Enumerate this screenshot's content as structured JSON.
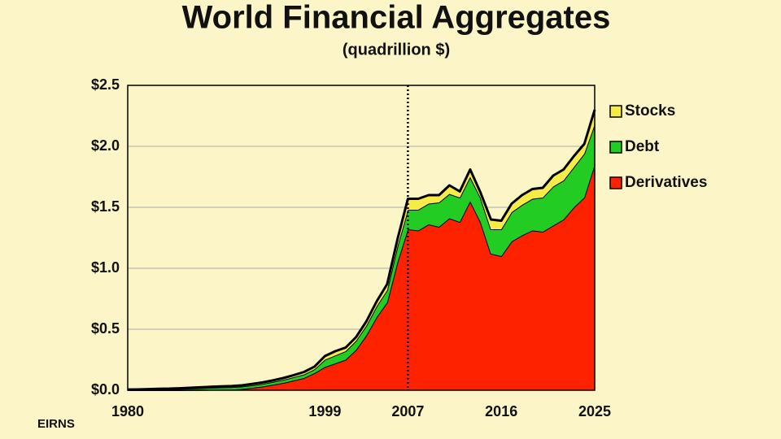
{
  "chart_data": {
    "type": "stacked_area",
    "title": "World Financial Aggregates",
    "subtitle": "(quadrillion $)",
    "source": "EIRNS",
    "x": [
      1980,
      1981,
      1982,
      1983,
      1984,
      1985,
      1986,
      1987,
      1988,
      1989,
      1990,
      1991,
      1992,
      1993,
      1994,
      1995,
      1996,
      1997,
      1998,
      1999,
      2000,
      2001,
      2002,
      2003,
      2004,
      2005,
      2006,
      2007,
      2008,
      2009,
      2010,
      2011,
      2012,
      2013,
      2014,
      2015,
      2016,
      2017,
      2018,
      2019,
      2020,
      2021,
      2022,
      2023,
      2024,
      2025
    ],
    "series": [
      {
        "name": "Stocks",
        "color": "#f7ec45",
        "values": [
          0.002,
          0.002,
          0.003,
          0.004,
          0.004,
          0.005,
          0.006,
          0.007,
          0.008,
          0.009,
          0.009,
          0.01,
          0.011,
          0.012,
          0.013,
          0.015,
          0.017,
          0.02,
          0.022,
          0.03,
          0.035,
          0.03,
          0.03,
          0.035,
          0.04,
          0.05,
          0.06,
          0.09,
          0.09,
          0.07,
          0.06,
          0.07,
          0.05,
          0.06,
          0.04,
          0.08,
          0.07,
          0.07,
          0.08,
          0.08,
          0.08,
          0.09,
          0.09,
          0.09,
          0.08,
          0.12
        ]
      },
      {
        "name": "Debt",
        "color": "#22cc22",
        "values": [
          0.004,
          0.005,
          0.006,
          0.008,
          0.009,
          0.011,
          0.013,
          0.015,
          0.017,
          0.018,
          0.019,
          0.02,
          0.021,
          0.022,
          0.023,
          0.025,
          0.027,
          0.03,
          0.032,
          0.06,
          0.065,
          0.07,
          0.075,
          0.08,
          0.09,
          0.1,
          0.13,
          0.16,
          0.17,
          0.17,
          0.2,
          0.2,
          0.2,
          0.2,
          0.2,
          0.2,
          0.22,
          0.24,
          0.25,
          0.26,
          0.28,
          0.32,
          0.32,
          0.33,
          0.36,
          0.33
        ]
      },
      {
        "name": "Derivatives",
        "color": "#ff2200",
        "values": [
          0,
          0,
          0,
          0,
          0,
          0,
          0.001,
          0.002,
          0.003,
          0.005,
          0.006,
          0.01,
          0.02,
          0.03,
          0.045,
          0.06,
          0.08,
          0.1,
          0.14,
          0.19,
          0.22,
          0.25,
          0.33,
          0.45,
          0.6,
          0.72,
          1.05,
          1.32,
          1.31,
          1.36,
          1.34,
          1.41,
          1.38,
          1.55,
          1.38,
          1.12,
          1.1,
          1.22,
          1.27,
          1.31,
          1.3,
          1.35,
          1.4,
          1.5,
          1.58,
          1.85
        ]
      }
    ],
    "xlim": [
      1980,
      2025
    ],
    "xticks": [
      1980,
      1999,
      2007,
      2016,
      2025
    ],
    "ylim": [
      0,
      2.5
    ],
    "yticks": [
      {
        "value": 0,
        "label": "$0.0"
      },
      {
        "value": 0.5,
        "label": "$0.5"
      },
      {
        "value": 1,
        "label": "$1.0"
      },
      {
        "value": 1.5,
        "label": "$1.5"
      },
      {
        "value": 2,
        "label": "$2.0"
      },
      {
        "value": 2.5,
        "label": "$2.5"
      }
    ],
    "reference_line_x": 2007,
    "grid": true
  }
}
